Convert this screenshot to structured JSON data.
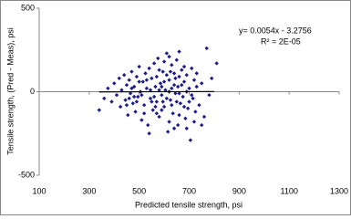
{
  "chart_data": {
    "type": "scatter",
    "xlabel": "Predicted tensile strength, psi",
    "ylabel": "Tensile strength, (Pred - Meas), psi",
    "annotations": [
      "y= 0.0054x - 3.2756",
      "R² = 2E-05"
    ],
    "xlim": [
      100,
      1300
    ],
    "xticks": [
      100,
      300,
      500,
      700,
      900,
      1100,
      1300
    ],
    "ylim": [
      -500,
      500
    ],
    "yticks": [
      -500,
      0,
      500
    ],
    "series": [
      {
        "color": "#1c1c8c",
        "x": [
          340,
          360,
          375,
          390,
          400,
          410,
          420,
          425,
          430,
          440,
          445,
          450,
          455,
          460,
          465,
          470,
          475,
          480,
          485,
          490,
          495,
          500,
          505,
          510,
          515,
          520,
          525,
          530,
          535,
          540,
          545,
          550,
          555,
          560,
          565,
          570,
          575,
          580,
          585,
          590,
          595,
          600,
          605,
          610,
          615,
          620,
          625,
          630,
          635,
          640,
          645,
          650,
          655,
          660,
          665,
          670,
          675,
          680,
          685,
          690,
          695,
          700,
          705,
          710,
          715,
          720,
          725,
          730,
          740,
          750,
          760,
          770,
          780,
          790,
          810,
          560,
          570,
          580,
          590,
          600,
          610,
          620,
          630,
          640,
          650,
          660,
          670,
          680,
          690,
          600,
          620,
          640,
          660,
          580,
          550,
          530,
          510,
          490,
          470,
          450,
          620,
          645,
          700,
          720,
          610,
          590,
          570,
          630,
          680,
          710,
          655,
          625,
          595,
          565,
          545,
          520,
          500,
          480,
          460,
          690,
          540,
          730,
          750,
          660
        ],
        "y": [
          -110,
          -40,
          20,
          -60,
          50,
          -20,
          80,
          -90,
          10,
          100,
          -50,
          40,
          -140,
          70,
          -10,
          120,
          -70,
          30,
          -120,
          90,
          -30,
          150,
          0,
          -170,
          60,
          -80,
          110,
          20,
          -200,
          140,
          -40,
          80,
          -110,
          170,
          30,
          -60,
          200,
          -150,
          50,
          -20,
          120,
          -90,
          10,
          230,
          -240,
          70,
          -50,
          160,
          -130,
          40,
          -10,
          190,
          -200,
          90,
          -70,
          130,
          -30,
          60,
          -160,
          100,
          -100,
          20,
          -290,
          140,
          -40,
          70,
          -120,
          30,
          -80,
          50,
          -150,
          260,
          -20,
          80,
          170,
          -30,
          90,
          10,
          -110,
          60,
          -40,
          -180,
          20,
          110,
          -60,
          -10,
          40,
          -90,
          0,
          180,
          210,
          -220,
          -140,
          130,
          -60,
          70,
          -20,
          -60,
          20,
          -80,
          0,
          80,
          -60,
          -180,
          100,
          30,
          -130,
          -80,
          150,
          -20,
          30,
          120,
          -60,
          -90,
          10,
          -130,
          60,
          -30,
          -40,
          -220,
          -250,
          110,
          -200,
          240
        ]
      }
    ],
    "trendline": {
      "color": "#000000",
      "x": [
        340,
        800
      ],
      "y": [
        -1.4,
        1.0
      ]
    }
  }
}
